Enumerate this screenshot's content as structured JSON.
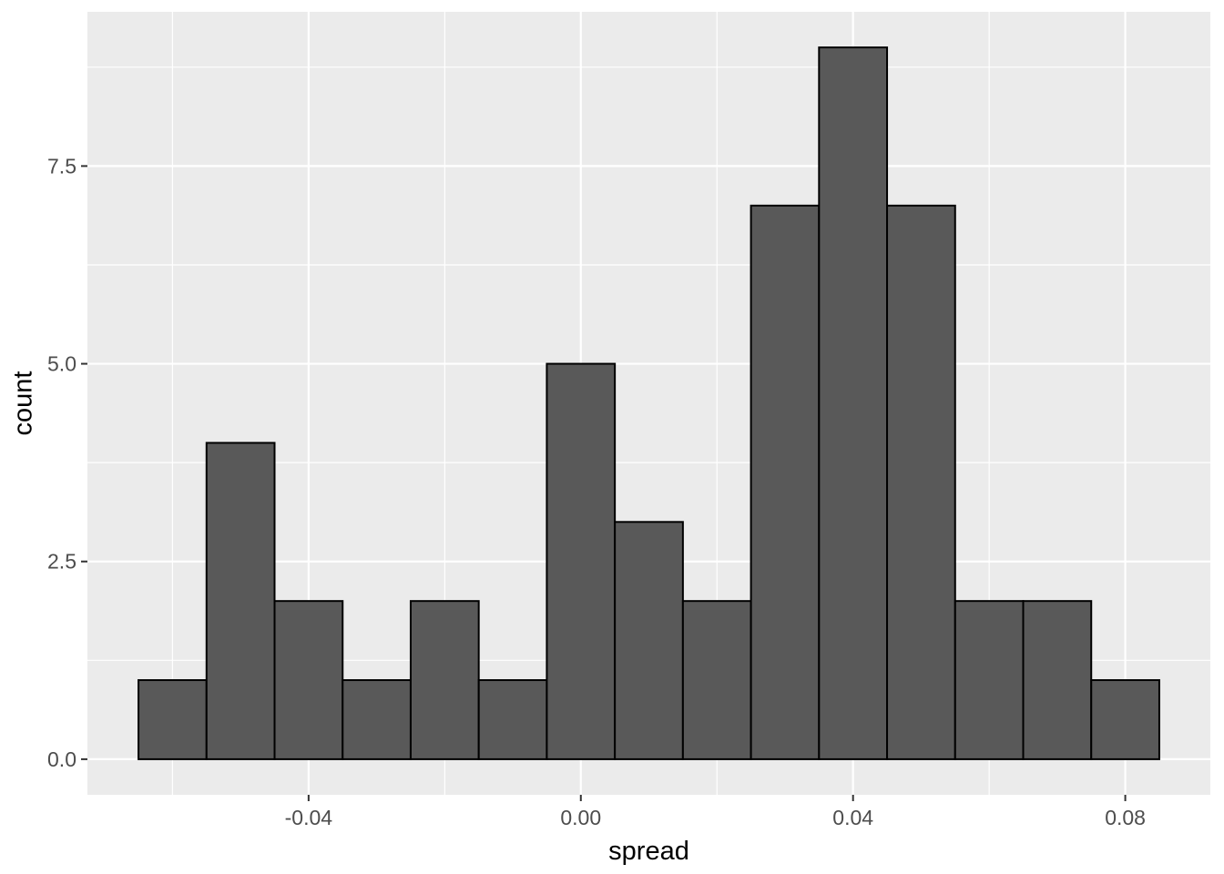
{
  "chart_data": {
    "type": "bar",
    "subtype": "histogram",
    "title": "",
    "xlabel": "spread",
    "ylabel": "count",
    "binwidth": 0.01,
    "bin_centers": [
      -0.06,
      -0.05,
      -0.04,
      -0.03,
      -0.02,
      -0.01,
      0.0,
      0.01,
      0.02,
      0.03,
      0.04,
      0.05,
      0.06,
      0.07,
      0.08
    ],
    "counts": [
      1,
      4,
      2,
      1,
      2,
      1,
      5,
      3,
      2,
      7,
      9,
      7,
      2,
      2,
      1
    ],
    "xlim": [
      -0.0725,
      0.0925
    ],
    "ylim": [
      -0.45,
      9.45
    ],
    "x_ticks": [
      -0.04,
      0.0,
      0.04,
      0.08
    ],
    "x_tick_labels": [
      "-0.04",
      "0.00",
      "0.04",
      "0.08"
    ],
    "y_ticks": [
      0.0,
      2.5,
      5.0,
      7.5
    ],
    "y_tick_labels": [
      "0.0",
      "2.5",
      "5.0",
      "7.5"
    ],
    "x_minor_gridlines": [
      -0.06,
      -0.02,
      0.02,
      0.06
    ],
    "y_minor_gridlines": [
      1.25,
      3.75,
      6.25,
      8.75
    ],
    "grid": true,
    "legend": false,
    "theme": {
      "panel_background": "#EBEBEB",
      "gridline_color": "#FFFFFF",
      "bar_fill": "#595959",
      "bar_stroke": "#000000",
      "tick_mark_color": "#333333",
      "tick_label_color": "#4D4D4D",
      "axis_title_color": "#000000",
      "plot_background": "#FFFFFF"
    }
  }
}
